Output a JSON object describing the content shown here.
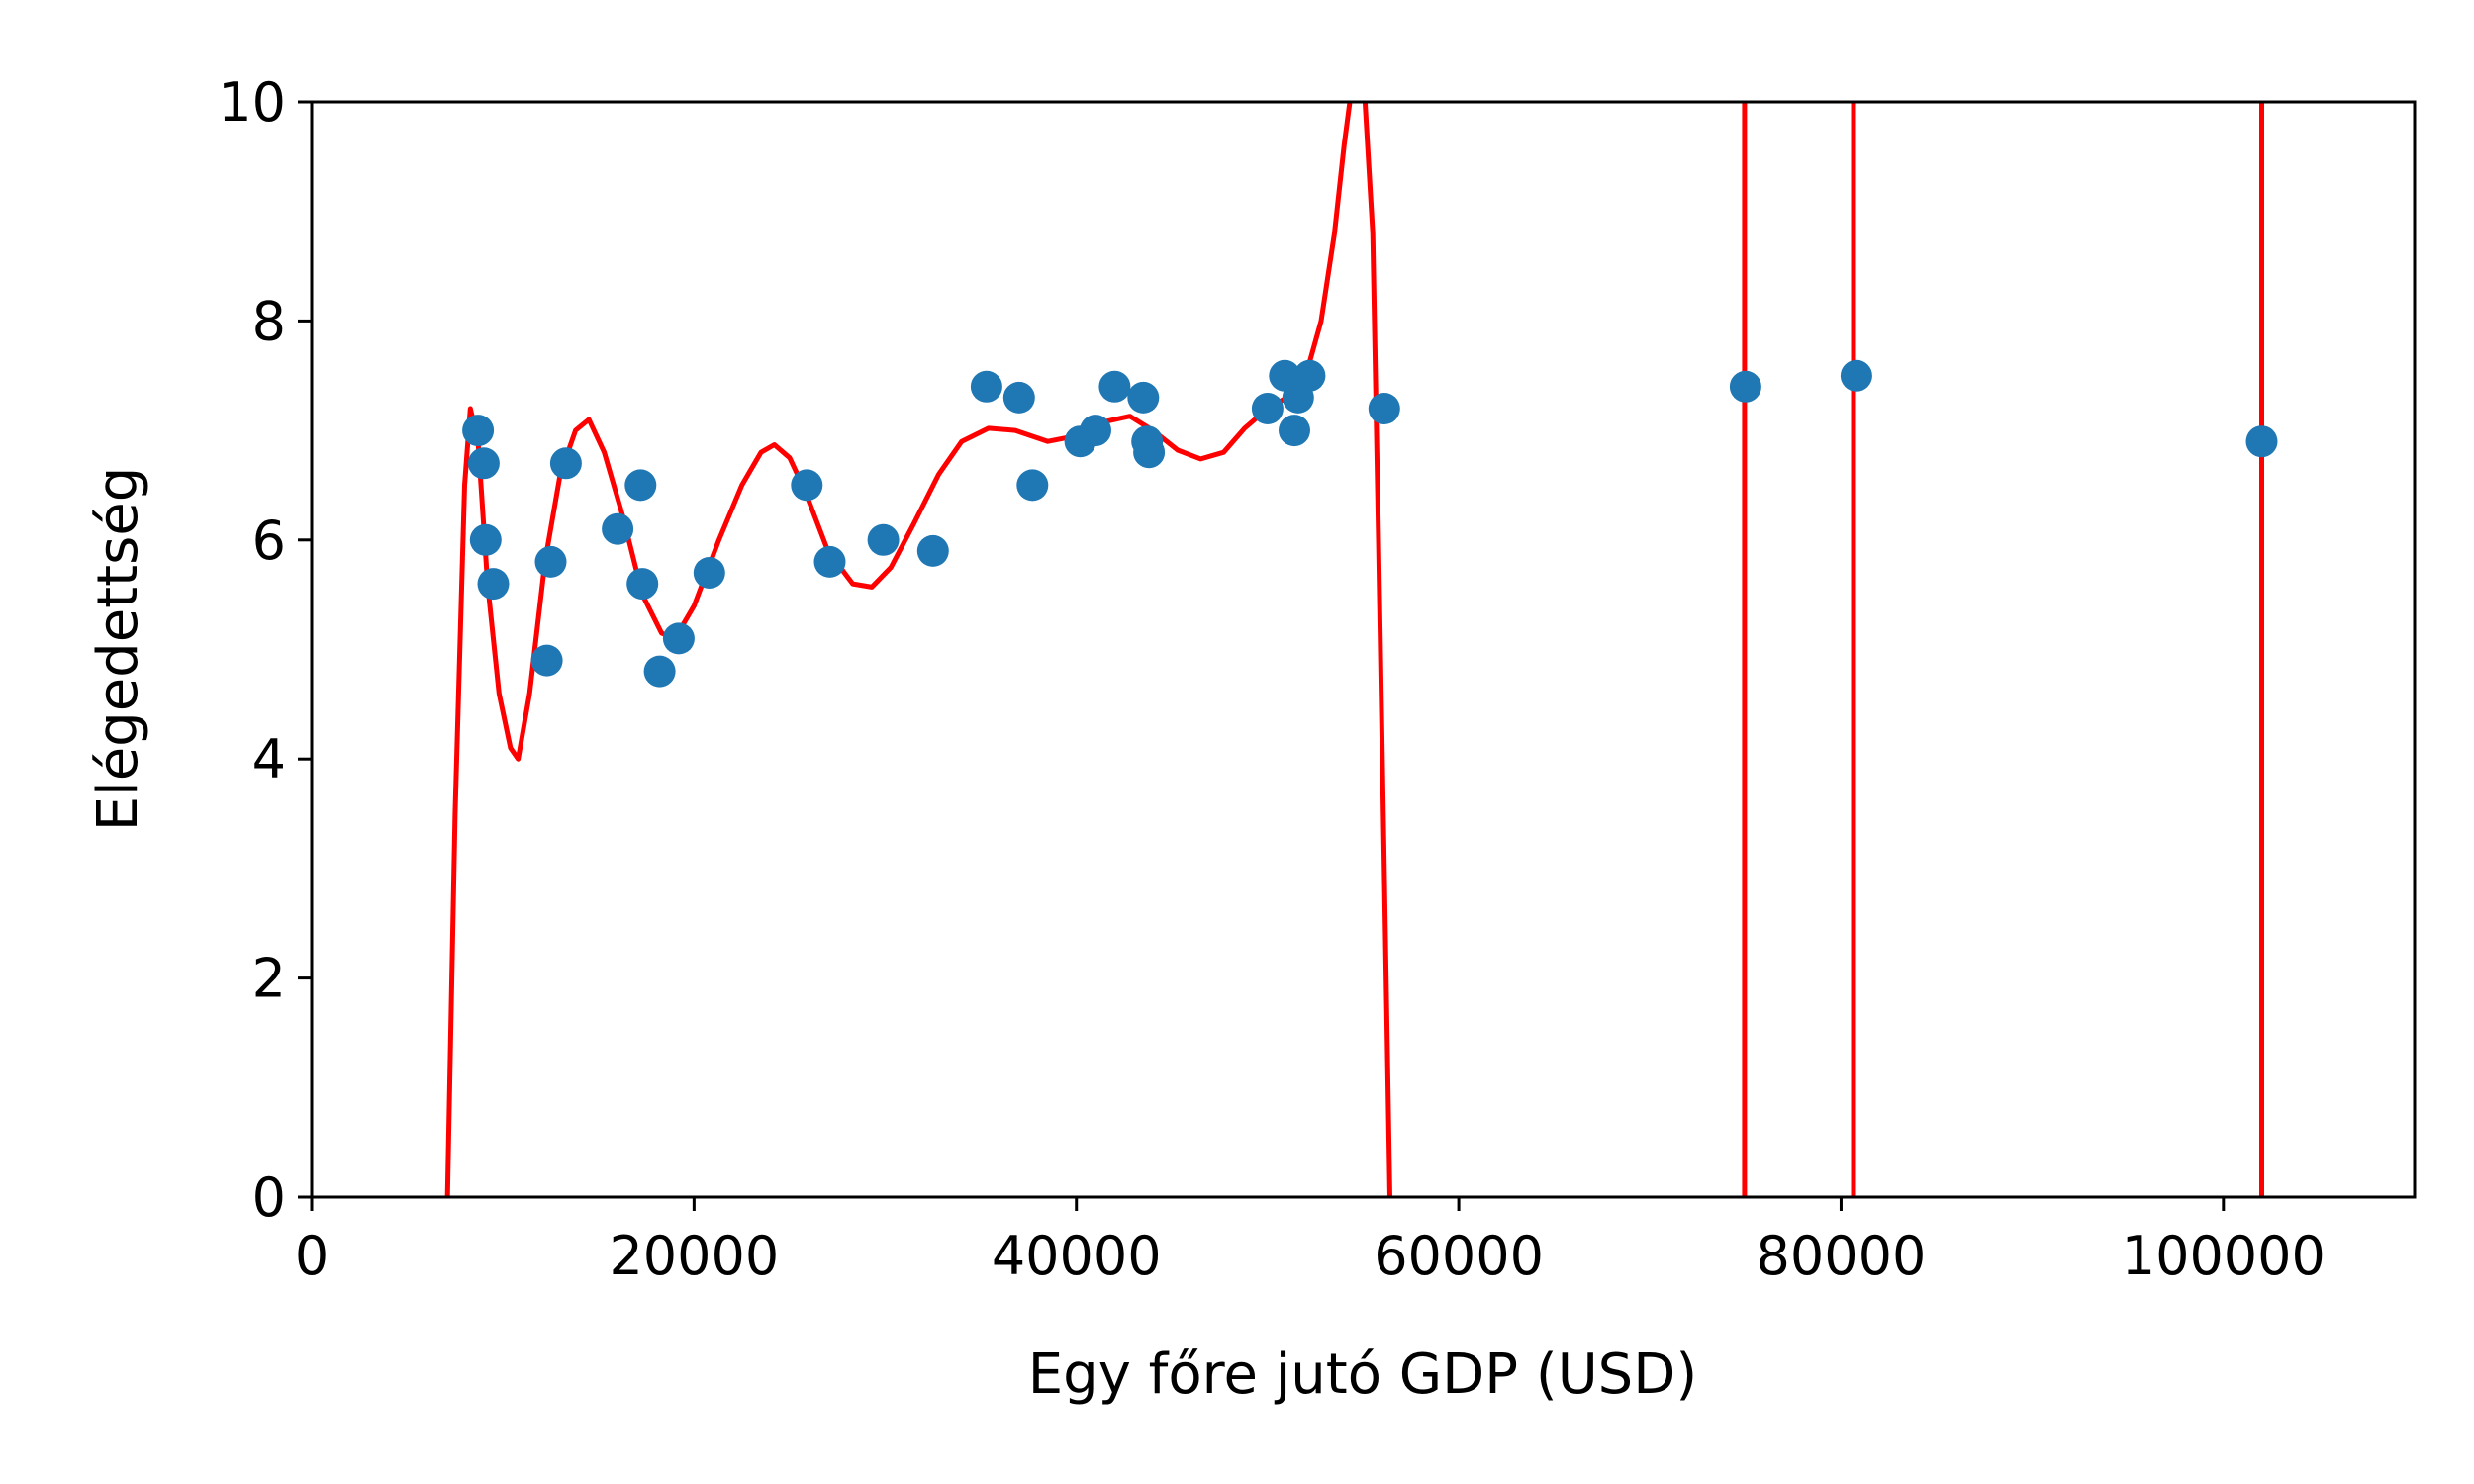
{
  "chart_data": {
    "type": "scatter",
    "title": "",
    "xlabel": "Egy főre jutó GDP (USD)",
    "ylabel": "Elégedettség",
    "xlim": [
      0,
      110000
    ],
    "ylim": [
      0,
      10
    ],
    "x_ticks": [
      0,
      20000,
      40000,
      60000,
      80000,
      100000
    ],
    "x_tick_labels": [
      "0",
      "20000",
      "40000",
      "60000",
      "80000",
      "100000"
    ],
    "y_ticks": [
      0,
      2,
      4,
      6,
      8,
      10
    ],
    "y_tick_labels": [
      "0",
      "2",
      "4",
      "6",
      "8",
      "10"
    ],
    "grid": false,
    "legend": "none",
    "series": [
      {
        "type": "scatter",
        "color": "#1f77b4",
        "points": [
          [
            8700,
            7.0
          ],
          [
            9000,
            6.7
          ],
          [
            9100,
            6.0
          ],
          [
            9500,
            5.6
          ],
          [
            12300,
            4.9
          ],
          [
            12500,
            5.8
          ],
          [
            13300,
            6.7
          ],
          [
            16000,
            6.1
          ],
          [
            17200,
            6.5
          ],
          [
            17300,
            5.6
          ],
          [
            18200,
            4.8
          ],
          [
            19200,
            5.1
          ],
          [
            20800,
            5.7
          ],
          [
            25900,
            6.5
          ],
          [
            27100,
            5.8
          ],
          [
            29900,
            6.0
          ],
          [
            32500,
            5.9
          ],
          [
            35300,
            7.4
          ],
          [
            37000,
            7.3
          ],
          [
            37700,
            6.5
          ],
          [
            40200,
            6.9
          ],
          [
            41000,
            7.0
          ],
          [
            42000,
            7.4
          ],
          [
            43500,
            7.3
          ],
          [
            43700,
            6.9
          ],
          [
            43800,
            6.8
          ],
          [
            50000,
            7.2
          ],
          [
            50900,
            7.5
          ],
          [
            51400,
            7.0
          ],
          [
            51600,
            7.3
          ],
          [
            52200,
            7.5
          ],
          [
            56100,
            7.2
          ],
          [
            75000,
            7.4
          ],
          [
            80800,
            7.5
          ],
          [
            102000,
            6.9
          ]
        ]
      },
      {
        "type": "line",
        "color": "#ff0000",
        "points": [
          [
            7100,
            0.0
          ],
          [
            7500,
            3.5
          ],
          [
            8000,
            6.5
          ],
          [
            8300,
            7.2
          ],
          [
            8700,
            6.9
          ],
          [
            9200,
            5.6
          ],
          [
            9800,
            4.6
          ],
          [
            10400,
            4.1
          ],
          [
            10800,
            4.0
          ],
          [
            11400,
            4.6
          ],
          [
            12200,
            5.8
          ],
          [
            13000,
            6.6
          ],
          [
            13800,
            7.0
          ],
          [
            14500,
            7.1
          ],
          [
            15300,
            6.8
          ],
          [
            16300,
            6.2
          ],
          [
            17300,
            5.5
          ],
          [
            18300,
            5.15
          ],
          [
            19000,
            5.1
          ],
          [
            20000,
            5.4
          ],
          [
            21300,
            6.0
          ],
          [
            22500,
            6.5
          ],
          [
            23500,
            6.8
          ],
          [
            24200,
            6.87
          ],
          [
            25000,
            6.75
          ],
          [
            25800,
            6.45
          ],
          [
            27000,
            5.9
          ],
          [
            28300,
            5.6
          ],
          [
            29300,
            5.57
          ],
          [
            30300,
            5.75
          ],
          [
            31500,
            6.15
          ],
          [
            32800,
            6.6
          ],
          [
            34000,
            6.9
          ],
          [
            35400,
            7.02
          ],
          [
            36800,
            7.0
          ],
          [
            38500,
            6.9
          ],
          [
            40000,
            6.95
          ],
          [
            41500,
            7.08
          ],
          [
            42800,
            7.13
          ],
          [
            44000,
            7.0
          ],
          [
            45300,
            6.82
          ],
          [
            46500,
            6.74
          ],
          [
            47700,
            6.8
          ],
          [
            48800,
            7.02
          ],
          [
            50000,
            7.2
          ],
          [
            51000,
            7.3
          ],
          [
            52000,
            7.5
          ],
          [
            52800,
            8.0
          ],
          [
            53500,
            8.8
          ],
          [
            54000,
            9.6
          ],
          [
            54300,
            10.0
          ]
        ]
      },
      {
        "type": "line",
        "color": "#ff0000",
        "points": [
          [
            55100,
            10.0
          ],
          [
            55500,
            8.8
          ],
          [
            55800,
            6.0
          ],
          [
            56100,
            3.0
          ],
          [
            56300,
            1.0
          ],
          [
            56400,
            0.0
          ]
        ]
      },
      {
        "type": "line",
        "color": "#ff0000",
        "points": [
          [
            74950,
            10.0
          ],
          [
            74950,
            0.0
          ]
        ]
      },
      {
        "type": "line",
        "color": "#ff0000",
        "points": [
          [
            80650,
            10.0
          ],
          [
            80650,
            0.0
          ]
        ]
      },
      {
        "type": "line",
        "color": "#ff0000",
        "points": [
          [
            102000,
            10.0
          ],
          [
            102000,
            0.0
          ]
        ]
      }
    ]
  }
}
